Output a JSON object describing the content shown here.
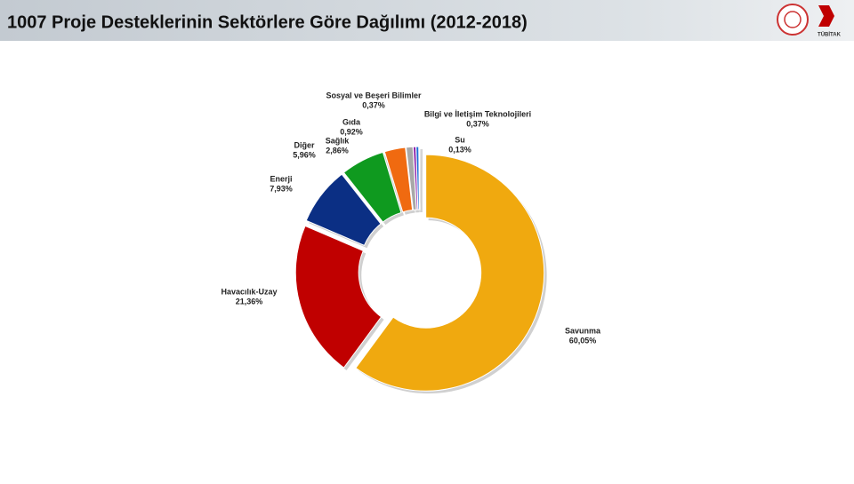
{
  "header": {
    "logo_text": "TÜBİTAK"
  },
  "chart_data": {
    "type": "donut",
    "title": "1007 Proje Desteklerinin Sektörlere Göre Dağılımı (2012-2018)",
    "categories": [
      "Savunma",
      "Havacılık-Uzay",
      "Enerji",
      "Diğer",
      "Sağlık",
      "Gıda",
      "Sosyal ve Beşeri Bilimler",
      "Bilgi ve İletişim Teknolojileri",
      "Su"
    ],
    "values": [
      60.05,
      21.36,
      7.93,
      5.96,
      2.86,
      0.92,
      0.37,
      0.37,
      0.13
    ],
    "value_labels": [
      "60,05%",
      "21,36%",
      "7,93%",
      "5,96%",
      "2,86%",
      "0,92%",
      "0,37%",
      "0,37%",
      "0,13%"
    ],
    "colors": [
      "#f0a90f",
      "#c00000",
      "#0b2f84",
      "#0f9a1f",
      "#f06a10",
      "#a8a8a8",
      "#8b1fa8",
      "#1f6fd6",
      "#6fc8e8"
    ]
  }
}
